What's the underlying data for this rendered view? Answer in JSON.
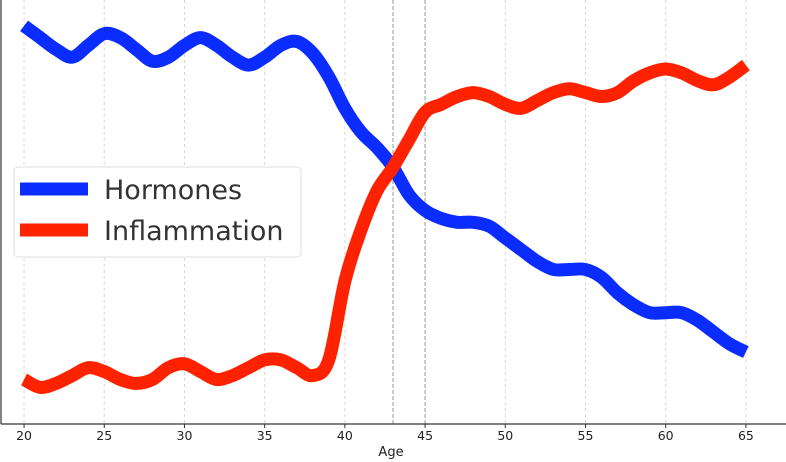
{
  "chart_data": {
    "type": "line",
    "title": "",
    "xlabel": "Age",
    "ylabel": "",
    "xlim": [
      18.5,
      67.5
    ],
    "ylim": [
      0,
      1
    ],
    "xticks": [
      20,
      25,
      30,
      35,
      40,
      45,
      50,
      55,
      60,
      65
    ],
    "yticks_shown": false,
    "grid": "vertical dashed",
    "vlines": [
      43,
      45
    ],
    "legend": {
      "location": "center-left"
    },
    "series": [
      {
        "name": "Hormones",
        "color": "#0a2cff",
        "x": [
          20,
          21,
          22,
          23,
          24,
          25,
          26,
          27,
          28,
          29,
          30,
          31,
          32,
          33,
          34,
          35,
          36,
          37,
          38,
          39,
          40,
          41,
          42,
          43,
          44,
          45,
          46,
          47,
          48,
          49,
          50,
          51,
          52,
          53,
          54,
          55,
          56,
          57,
          58,
          59,
          60,
          61,
          62,
          63,
          64,
          65
        ],
        "y": [
          0.97,
          0.94,
          0.91,
          0.89,
          0.92,
          0.95,
          0.94,
          0.91,
          0.88,
          0.89,
          0.92,
          0.94,
          0.92,
          0.89,
          0.87,
          0.89,
          0.92,
          0.93,
          0.9,
          0.84,
          0.76,
          0.7,
          0.66,
          0.61,
          0.54,
          0.5,
          0.48,
          0.47,
          0.47,
          0.46,
          0.43,
          0.4,
          0.37,
          0.35,
          0.35,
          0.35,
          0.33,
          0.29,
          0.26,
          0.24,
          0.24,
          0.24,
          0.22,
          0.19,
          0.16,
          0.14
        ]
      },
      {
        "name": "Inflammation",
        "color": "#ff2200",
        "x": [
          20,
          21,
          22,
          23,
          24,
          25,
          26,
          27,
          28,
          29,
          30,
          31,
          32,
          33,
          34,
          35,
          36,
          37,
          38,
          39,
          40,
          41,
          42,
          43,
          44,
          45,
          46,
          47,
          48,
          49,
          50,
          51,
          52,
          53,
          54,
          55,
          56,
          57,
          58,
          59,
          60,
          61,
          62,
          63,
          64,
          65
        ],
        "y": [
          0.07,
          0.05,
          0.06,
          0.08,
          0.1,
          0.09,
          0.07,
          0.06,
          0.07,
          0.1,
          0.11,
          0.09,
          0.07,
          0.08,
          0.1,
          0.12,
          0.12,
          0.1,
          0.08,
          0.12,
          0.32,
          0.45,
          0.55,
          0.61,
          0.68,
          0.75,
          0.77,
          0.79,
          0.8,
          0.79,
          0.77,
          0.76,
          0.78,
          0.8,
          0.81,
          0.8,
          0.79,
          0.8,
          0.83,
          0.85,
          0.86,
          0.85,
          0.83,
          0.82,
          0.84,
          0.87
        ]
      }
    ]
  }
}
